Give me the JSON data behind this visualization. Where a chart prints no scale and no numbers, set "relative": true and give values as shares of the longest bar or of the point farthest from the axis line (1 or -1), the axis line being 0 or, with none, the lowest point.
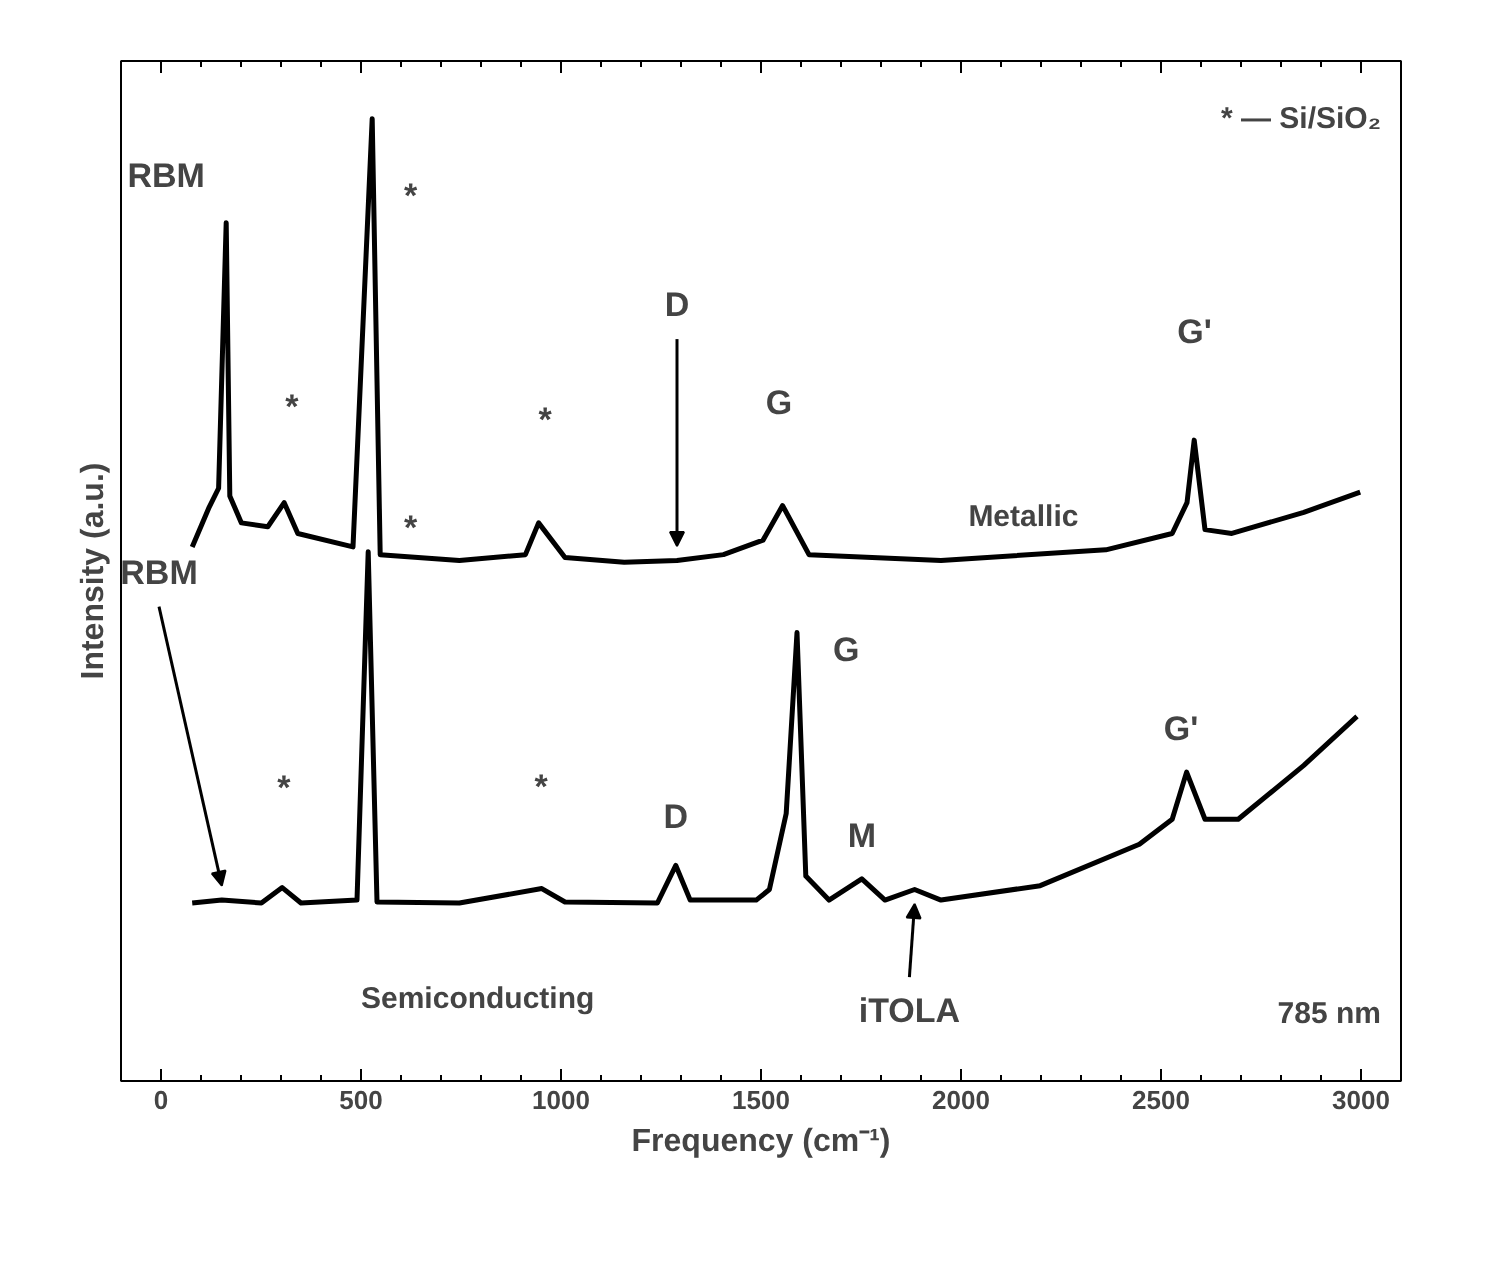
{
  "chart_data": {
    "type": "line",
    "relative": true,
    "xlabel": "Frequency (cm⁻¹)",
    "ylabel": "Intensity (a.u.)",
    "xlim": [
      -100,
      3100
    ],
    "xticks": [
      0,
      500,
      1000,
      1500,
      2000,
      2500,
      3000
    ],
    "grid": false,
    "line_style": "solid",
    "series": [
      {
        "name": "Metallic",
        "color": "#000000",
        "x": [
          78,
          119,
          144,
          163,
          172,
          201,
          267,
          308,
          342,
          480,
          528,
          548,
          746,
          911,
          944,
          1010,
          1158,
          1290,
          1406,
          1505,
          1554,
          1620,
          1950,
          2362,
          2528,
          2565,
          2583,
          2610,
          2677,
          2857,
          2998
        ],
        "values": [
          0.555,
          0.595,
          0.616,
          0.892,
          0.608,
          0.58,
          0.576,
          0.601,
          0.569,
          0.555,
          1.0,
          0.547,
          0.541,
          0.547,
          0.58,
          0.544,
          0.539,
          0.541,
          0.547,
          0.562,
          0.598,
          0.547,
          0.541,
          0.552,
          0.569,
          0.601,
          0.666,
          0.573,
          0.569,
          0.591,
          0.612
        ]
      },
      {
        "name": "Semiconducting",
        "color": "#000000",
        "x": [
          78,
          152,
          251,
          303,
          350,
          490,
          518,
          540,
          746,
          952,
          1010,
          1241,
          1287,
          1323,
          1488,
          1521,
          1563,
          1590,
          1612,
          1670,
          1752,
          1810,
          1884,
          1950,
          2198,
          2446,
          2528,
          2564,
          2610,
          2693,
          2857,
          2990
        ],
        "values": [
          0.185,
          0.188,
          0.185,
          0.201,
          0.185,
          0.188,
          0.55,
          0.186,
          0.185,
          0.2,
          0.186,
          0.185,
          0.224,
          0.188,
          0.188,
          0.199,
          0.278,
          0.466,
          0.213,
          0.188,
          0.21,
          0.188,
          0.199,
          0.188,
          0.203,
          0.246,
          0.272,
          0.321,
          0.272,
          0.272,
          0.328,
          0.379
        ]
      }
    ],
    "annotations": [
      {
        "text": "RBM",
        "x": 163,
        "y": 0.892
      },
      {
        "text": "*",
        "x": 528,
        "y": 1.0
      },
      {
        "text": "*",
        "x": 308,
        "y": 0.601
      },
      {
        "text": "D",
        "x": 1290,
        "y": 0.541
      },
      {
        "text": "*",
        "x": 944,
        "y": 0.58
      },
      {
        "text": "G",
        "x": 1554,
        "y": 0.598
      },
      {
        "text": "G'",
        "x": 2583,
        "y": 0.666
      },
      {
        "text": "RBM",
        "x": 152,
        "y": 0.188
      },
      {
        "text": "*",
        "x": 518,
        "y": 0.55
      },
      {
        "text": "*",
        "x": 303,
        "y": 0.201
      },
      {
        "text": "*",
        "x": 952,
        "y": 0.2
      },
      {
        "text": "D",
        "x": 1287,
        "y": 0.224
      },
      {
        "text": "G",
        "x": 1590,
        "y": 0.466
      },
      {
        "text": "M",
        "x": 1752,
        "y": 0.21
      },
      {
        "text": "G'",
        "x": 2564,
        "y": 0.321
      },
      {
        "text": "iTOLA",
        "x": 1884,
        "y": 0.199
      },
      "* — Si/SiO₂",
      "785 nm"
    ]
  }
}
